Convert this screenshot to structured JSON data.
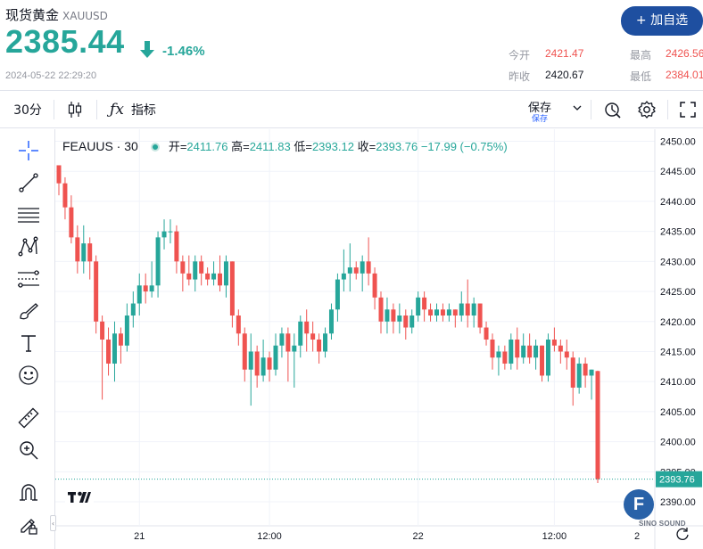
{
  "header": {
    "title": "现货黄金",
    "symbol": "XAUUSD",
    "price": "2385.44",
    "change_pct": "-1.46%",
    "timestamp": "2024-05-22 22:29:20",
    "add_watchlist_label": "+ 加自选",
    "stats": {
      "open_label": "今开",
      "open_value": "2421.47",
      "high_label": "最高",
      "high_value": "2426.56",
      "prev_close_label": "昨收",
      "prev_close_value": "2420.67",
      "low_label": "最低",
      "low_value": "2384.01"
    }
  },
  "toolbar": {
    "interval": "30分",
    "indicators_label": "指标",
    "save_label": "保存",
    "save_sub": "保存"
  },
  "legend": {
    "symbol": "FEAUUS · 30",
    "open_label": "开",
    "open_value": "2411.76",
    "high_label": "高",
    "high_value": "2411.83",
    "low_label": "低",
    "low_value": "2393.12",
    "close_label": "收",
    "close_value": "2393.76",
    "change": "−17.99 (−0.75%)"
  },
  "watermark": {
    "badge": "F",
    "text": "SINO SOUND"
  },
  "colors": {
    "up": "#26a69a",
    "down": "#ef5350",
    "brand": "#1e4fa0",
    "grid": "#f0f3fa"
  },
  "left_tools": [
    "crosshair-icon",
    "trend-line-icon",
    "horizontal-lines-icon",
    "pattern-icon",
    "fib-icon",
    "brush-icon",
    "text-icon",
    "emoji-icon",
    "ruler-icon",
    "zoom-in-icon",
    "magnet-icon",
    "lock-pencil-icon"
  ],
  "chart_data": {
    "type": "candlestick",
    "interval": "30",
    "y_ticks": [
      "2450.00",
      "2445.00",
      "2440.00",
      "2435.00",
      "2430.00",
      "2425.00",
      "2420.00",
      "2415.00",
      "2410.00",
      "2405.00",
      "2400.00",
      "2395.00",
      "2390.00"
    ],
    "x_ticks": [
      "21",
      "12:00",
      "22",
      "12:00",
      "2"
    ],
    "last_price": "2393.76",
    "ylim": [
      2386,
      2452
    ],
    "candles": [
      [
        2446,
        2446,
        2441,
        2443
      ],
      [
        2443,
        2444,
        2437,
        2439
      ],
      [
        2439,
        2441,
        2433,
        2434
      ],
      [
        2434,
        2436,
        2428,
        2430
      ],
      [
        2430,
        2436,
        2428,
        2433
      ],
      [
        2433,
        2434,
        2427,
        2430
      ],
      [
        2430,
        2431,
        2418,
        2420
      ],
      [
        2420,
        2421,
        2407,
        2417
      ],
      [
        2417,
        2419,
        2411,
        2413
      ],
      [
        2413,
        2420,
        2410,
        2418
      ],
      [
        2418,
        2419,
        2413,
        2416
      ],
      [
        2416,
        2423,
        2415,
        2421
      ],
      [
        2421,
        2425,
        2419,
        2423
      ],
      [
        2423,
        2428,
        2421,
        2426
      ],
      [
        2426,
        2428,
        2423,
        2425
      ],
      [
        2425,
        2430,
        2424,
        2426
      ],
      [
        2426,
        2435,
        2424,
        2434
      ],
      [
        2434,
        2437,
        2432,
        2435
      ],
      [
        2435,
        2437,
        2433,
        2435
      ],
      [
        2435,
        2436,
        2428,
        2430
      ],
      [
        2430,
        2431,
        2425,
        2428
      ],
      [
        2428,
        2431,
        2426,
        2427
      ],
      [
        2427,
        2431,
        2425,
        2430
      ],
      [
        2430,
        2431,
        2426,
        2428
      ],
      [
        2428,
        2429,
        2426,
        2427
      ],
      [
        2427,
        2430,
        2426,
        2428
      ],
      [
        2428,
        2431,
        2425,
        2426
      ],
      [
        2426,
        2431,
        2424,
        2430
      ],
      [
        2430,
        2430,
        2419,
        2421
      ],
      [
        2421,
        2422,
        2416,
        2418
      ],
      [
        2418,
        2419,
        2410,
        2412
      ],
      [
        2412,
        2418,
        2406,
        2415
      ],
      [
        2415,
        2416,
        2409,
        2411
      ],
      [
        2411,
        2417,
        2410,
        2414
      ],
      [
        2414,
        2415,
        2410,
        2412
      ],
      [
        2412,
        2418,
        2411,
        2416
      ],
      [
        2416,
        2419,
        2414,
        2418
      ],
      [
        2418,
        2419,
        2410,
        2415
      ],
      [
        2415,
        2418,
        2409,
        2416
      ],
      [
        2416,
        2421,
        2414,
        2420
      ],
      [
        2420,
        2422,
        2415,
        2418
      ],
      [
        2418,
        2420,
        2415,
        2417
      ],
      [
        2417,
        2418,
        2413,
        2415
      ],
      [
        2415,
        2419,
        2414,
        2418
      ],
      [
        2418,
        2423,
        2417,
        2422
      ],
      [
        2422,
        2428,
        2420,
        2427
      ],
      [
        2427,
        2432,
        2425,
        2428
      ],
      [
        2428,
        2433,
        2425,
        2429
      ],
      [
        2429,
        2430,
        2427,
        2428
      ],
      [
        2428,
        2431,
        2425,
        2430
      ],
      [
        2430,
        2434,
        2426,
        2428
      ],
      [
        2428,
        2429,
        2422,
        2424
      ],
      [
        2424,
        2425,
        2418,
        2420
      ],
      [
        2420,
        2424,
        2418,
        2422
      ],
      [
        2422,
        2423,
        2418,
        2420
      ],
      [
        2420,
        2423,
        2418,
        2421
      ],
      [
        2421,
        2422,
        2417,
        2419
      ],
      [
        2419,
        2422,
        2418,
        2421
      ],
      [
        2421,
        2425,
        2420,
        2424
      ],
      [
        2424,
        2425,
        2420,
        2422
      ],
      [
        2422,
        2423,
        2420,
        2421
      ],
      [
        2421,
        2423,
        2420,
        2422
      ],
      [
        2422,
        2423,
        2420,
        2421
      ],
      [
        2421,
        2423,
        2420,
        2422
      ],
      [
        2422,
        2422,
        2419,
        2421
      ],
      [
        2421,
        2425,
        2420,
        2423
      ],
      [
        2423,
        2427,
        2419,
        2421
      ],
      [
        2421,
        2424,
        2419,
        2423
      ],
      [
        2423,
        2423,
        2418,
        2419
      ],
      [
        2419,
        2420,
        2416,
        2417
      ],
      [
        2417,
        2418,
        2412,
        2414
      ],
      [
        2414,
        2416,
        2411,
        2415
      ],
      [
        2415,
        2416,
        2412,
        2413
      ],
      [
        2413,
        2418,
        2412,
        2417
      ],
      [
        2417,
        2419,
        2412,
        2414
      ],
      [
        2414,
        2418,
        2413,
        2416
      ],
      [
        2416,
        2418,
        2413,
        2414
      ],
      [
        2414,
        2417,
        2412,
        2416
      ],
      [
        2416,
        2416,
        2410,
        2411
      ],
      [
        2411,
        2418,
        2410,
        2417
      ],
      [
        2417,
        2419,
        2415,
        2416
      ],
      [
        2416,
        2417,
        2413,
        2415
      ],
      [
        2415,
        2417,
        2412,
        2414
      ],
      [
        2414,
        2415,
        2406,
        2409
      ],
      [
        2409,
        2414,
        2408,
        2413
      ],
      [
        2413,
        2414,
        2409,
        2411
      ],
      [
        2411,
        2412,
        2407,
        2412
      ],
      [
        2411.76,
        2411.83,
        2393.12,
        2393.76
      ]
    ]
  }
}
